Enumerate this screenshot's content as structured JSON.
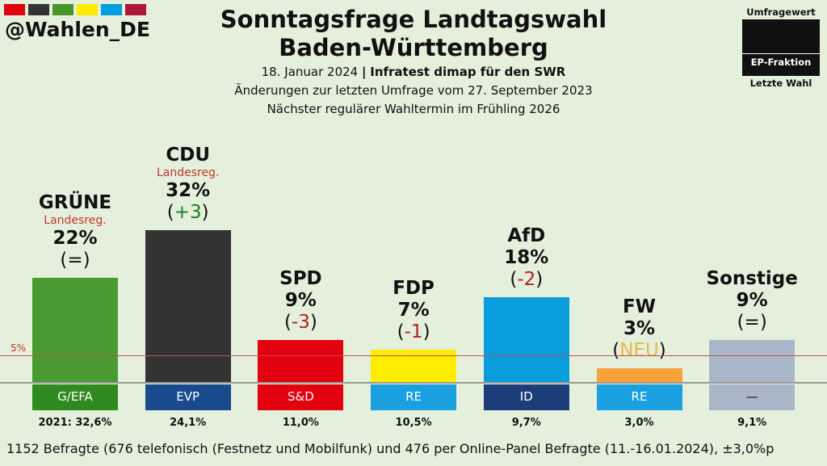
{
  "header": {
    "brand": "@Wahlen_DE",
    "stripe_colors": [
      "#e3000f",
      "#333333",
      "#46962b",
      "#ffed00",
      "#009ee0",
      "#b0153a"
    ],
    "title_line1": "Sonntagsfrage Landtagswahl",
    "title_line2": "Baden-Württemberg",
    "date": "18. Januar 2024",
    "separator": "|",
    "pollster": "Infratest dimap für den SWR",
    "changes_note": "Änderungen zur letzten Umfrage vom 27. September 2023",
    "next_election": "Nächster regulärer Wahltermin im Frühling 2026"
  },
  "legend": {
    "top": "Umfragewert",
    "middle": "EP-Fraktion",
    "bottom": "Letzte Wahl"
  },
  "threshold_label": "5%",
  "chart_data": {
    "type": "bar",
    "title": "Sonntagsfrage Landtagswahl Baden-Württemberg",
    "threshold": 5,
    "categories": [
      "GRÜNE",
      "CDU",
      "SPD",
      "FDP",
      "AfD",
      "FW",
      "Sonstige"
    ],
    "values": [
      22,
      32,
      9,
      7,
      18,
      3,
      9
    ],
    "value_labels": [
      "22%",
      "32%",
      "9%",
      "7%",
      "18%",
      "3%",
      "9%"
    ],
    "change_labels": [
      [
        "(",
        "=",
        ")"
      ],
      [
        "(",
        "+3",
        ")"
      ],
      [
        "(",
        "-3",
        ")"
      ],
      [
        "(",
        "-1",
        ")"
      ],
      [
        "(",
        "-2",
        ")"
      ],
      [
        "(",
        "NEU",
        ")"
      ],
      [
        "(",
        "=",
        ")"
      ]
    ],
    "change_colors": [
      "#111111",
      "#1e7d1e",
      "#b22222",
      "#b22222",
      "#b22222",
      "#e8b84a",
      "#111111"
    ],
    "government": [
      "Landesreg.",
      "Landesreg.",
      "",
      "",
      "",
      "",
      ""
    ],
    "bar_colors": [
      "#4a9a32",
      "#333333",
      "#e3000f",
      "#ffed00",
      "#0a9ddd",
      "#f7a23b",
      "#a9b5c9"
    ],
    "factions": [
      "G/EFA",
      "EVP",
      "S&D",
      "RE",
      "ID",
      "RE",
      "—"
    ],
    "faction_colors": [
      "#2f8a1f",
      "#184a8c",
      "#e3000f",
      "#1a9fe0",
      "#1b3d7a",
      "#1a9fe0",
      "#a9b5c9"
    ],
    "faction_text_colors": [
      "#ffffff",
      "#ffffff",
      "#ffffff",
      "#ffffff",
      "#ffffff",
      "#ffffff",
      "#111111"
    ],
    "last_election_labels": [
      "2021: 32,6%",
      "24,1%",
      "11,0%",
      "10,5%",
      "9,7%",
      "3,0%",
      "9,1%"
    ]
  },
  "footer": "1152 Befragte (676 telefonisch (Festnetz und Mobilfunk) und 476 per Online-Panel Befragte (11.-16.01.2024), ±3,0%p"
}
